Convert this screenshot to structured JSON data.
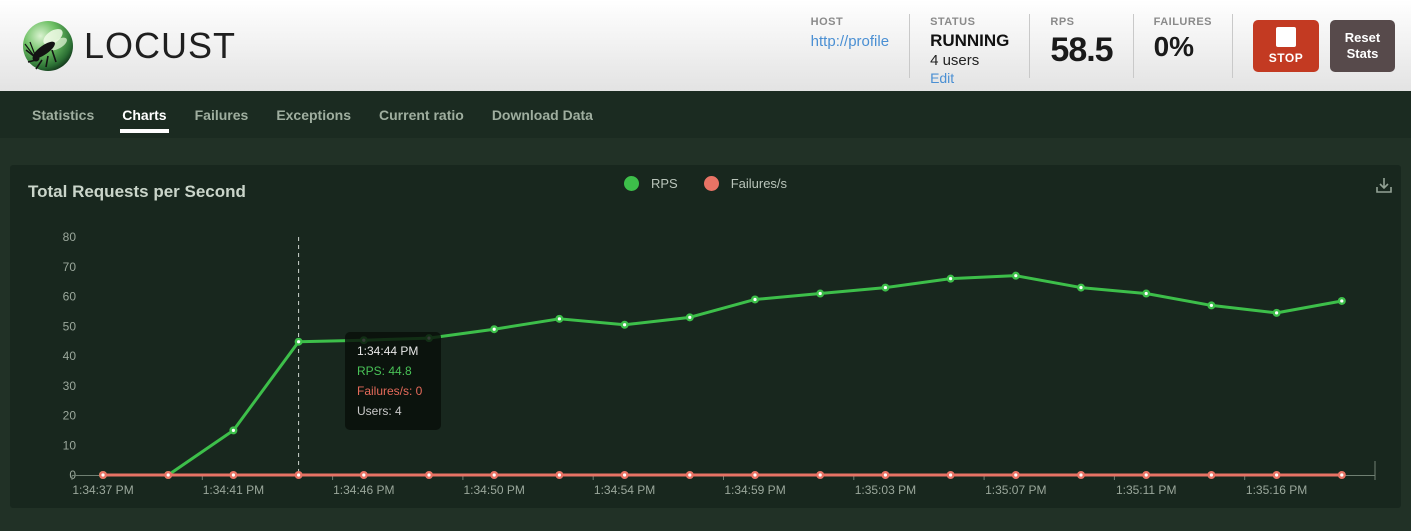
{
  "header": {
    "logo_text": "LOCUST",
    "host": {
      "label": "HOST",
      "value": "http://profile"
    },
    "status": {
      "label": "STATUS",
      "value": "RUNNING",
      "users": "4 users",
      "edit": "Edit"
    },
    "rps": {
      "label": "RPS",
      "value": "58.5"
    },
    "failures": {
      "label": "FAILURES",
      "value": "0%"
    },
    "stop_button": "STOP",
    "reset_button": "Reset Stats"
  },
  "nav": {
    "items": [
      {
        "label": "Statistics"
      },
      {
        "label": "Charts"
      },
      {
        "label": "Failures"
      },
      {
        "label": "Exceptions"
      },
      {
        "label": "Current ratio"
      },
      {
        "label": "Download Data"
      }
    ],
    "active": "Charts"
  },
  "chart": {
    "title": "Total Requests per Second",
    "legend": [
      {
        "label": "RPS",
        "color": "#3dbf4a"
      },
      {
        "label": "Failures/s",
        "color": "#e87365"
      }
    ]
  },
  "tooltip": {
    "time": "1:34:44 PM",
    "rps": "RPS: 44.8",
    "failures": "Failures/s: 0",
    "users": "Users: 4"
  },
  "chart_data": {
    "type": "line",
    "title": "Total Requests per Second",
    "x_tick_labels": [
      "1:34:37 PM",
      "1:34:41 PM",
      "1:34:46 PM",
      "1:34:50 PM",
      "1:34:54 PM",
      "1:34:59 PM",
      "1:35:03 PM",
      "1:35:07 PM",
      "1:35:11 PM",
      "1:35:16 PM"
    ],
    "series": [
      {
        "name": "RPS",
        "color": "#3dbf4a",
        "values": [
          0,
          0,
          15,
          44.8,
          45.3,
          46,
          49,
          52.5,
          50.5,
          53,
          59,
          61,
          63,
          66,
          67,
          63,
          61,
          57,
          54.5,
          58.5
        ]
      },
      {
        "name": "Failures/s",
        "color": "#e87365",
        "values": [
          0,
          0,
          0,
          0,
          0,
          0,
          0,
          0,
          0,
          0,
          0,
          0,
          0,
          0,
          0,
          0,
          0,
          0,
          0,
          0
        ]
      }
    ],
    "ylim": [
      0,
      80
    ],
    "yticks": [
      0,
      10,
      20,
      30,
      40,
      50,
      60,
      70,
      80
    ],
    "grid": false,
    "legend_position": "top-center",
    "tooltip_point_index": 3,
    "tooltip": {
      "time": "1:34:44 PM",
      "RPS": 44.8,
      "Failures/s": 0,
      "Users": 4
    }
  }
}
